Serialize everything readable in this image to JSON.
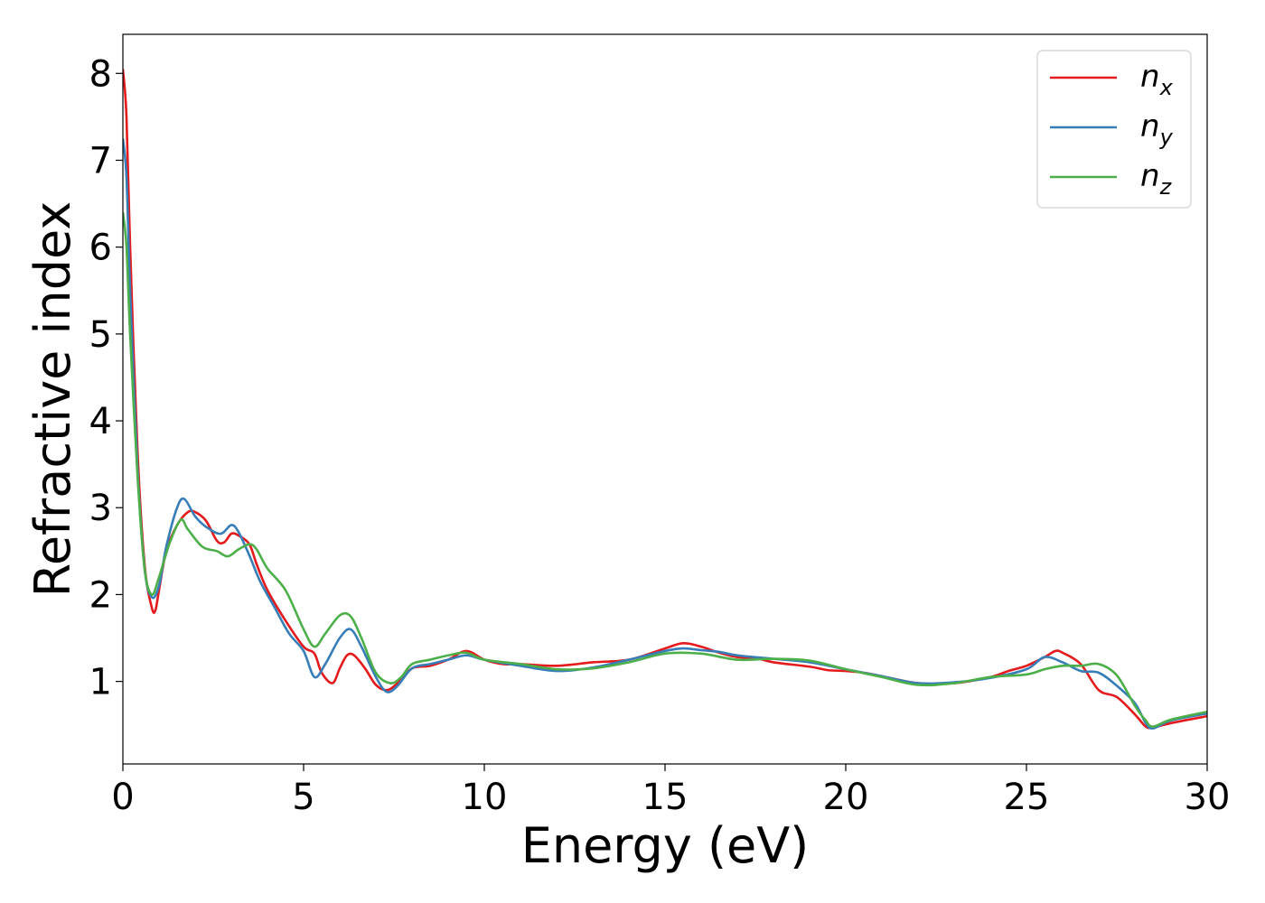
{
  "chart_data": {
    "type": "line",
    "xlabel": "Energy (eV)",
    "ylabel": "Refractive index",
    "xlim": [
      0,
      30
    ],
    "ylim": [
      0.05,
      8.45
    ],
    "xticks": [
      "0",
      "5",
      "10",
      "15",
      "20",
      "25",
      "30"
    ],
    "yticks": [
      "1",
      "2",
      "3",
      "4",
      "5",
      "6",
      "7",
      "8"
    ],
    "grid": false,
    "legend_position": "top-right",
    "series": [
      {
        "name": "n",
        "subscript": "x",
        "color": "#e41a1c",
        "x": [
          0,
          0.1,
          0.2,
          0.4,
          0.6,
          0.8,
          0.9,
          1.0,
          1.2,
          1.5,
          1.8,
          2.0,
          2.3,
          2.6,
          2.8,
          3.0,
          3.2,
          3.5,
          3.7,
          4.0,
          4.5,
          5.0,
          5.3,
          5.5,
          5.8,
          6.0,
          6.2,
          6.4,
          6.7,
          7.0,
          7.3,
          7.6,
          8.0,
          8.5,
          9.0,
          9.5,
          10.0,
          10.5,
          11.0,
          12.0,
          13.0,
          14.0,
          15.0,
          15.5,
          16.0,
          16.5,
          17.0,
          17.5,
          18.0,
          19.0,
          19.5,
          20.0,
          20.5,
          21.0,
          22.0,
          23.0,
          24.0,
          24.5,
          25.0,
          25.5,
          25.8,
          26.0,
          26.5,
          27.0,
          27.5,
          28.0,
          28.3,
          28.5,
          29.0,
          30.0
        ],
        "y": [
          8.05,
          7.5,
          6.0,
          3.7,
          2.35,
          1.85,
          1.82,
          2.05,
          2.5,
          2.8,
          2.95,
          2.95,
          2.85,
          2.62,
          2.6,
          2.7,
          2.68,
          2.58,
          2.35,
          2.05,
          1.7,
          1.4,
          1.32,
          1.1,
          0.98,
          1.15,
          1.3,
          1.3,
          1.15,
          0.96,
          0.9,
          0.98,
          1.15,
          1.18,
          1.25,
          1.35,
          1.25,
          1.2,
          1.2,
          1.18,
          1.22,
          1.25,
          1.38,
          1.44,
          1.4,
          1.33,
          1.28,
          1.27,
          1.22,
          1.17,
          1.13,
          1.12,
          1.1,
          1.06,
          0.98,
          0.98,
          1.05,
          1.12,
          1.18,
          1.28,
          1.35,
          1.33,
          1.2,
          0.9,
          0.82,
          0.62,
          0.48,
          0.47,
          0.52,
          0.6
        ]
      },
      {
        "name": "n",
        "subscript": "y",
        "color": "#377eb8",
        "x": [
          0,
          0.1,
          0.2,
          0.4,
          0.6,
          0.8,
          1.0,
          1.2,
          1.5,
          1.7,
          2.0,
          2.3,
          2.7,
          3.0,
          3.2,
          3.5,
          3.8,
          4.2,
          4.6,
          5.0,
          5.3,
          5.6,
          6.0,
          6.3,
          6.6,
          7.0,
          7.3,
          7.6,
          8.0,
          8.5,
          9.0,
          9.5,
          10.0,
          11.0,
          12.0,
          13.0,
          14.0,
          15.0,
          15.5,
          16.0,
          16.5,
          17.0,
          18.0,
          19.0,
          20.0,
          21.0,
          22.0,
          23.0,
          24.0,
          25.0,
          25.5,
          26.0,
          26.5,
          27.0,
          27.5,
          28.0,
          28.3,
          28.5,
          29.0,
          30.0
        ],
        "y": [
          7.25,
          6.8,
          5.5,
          3.5,
          2.3,
          1.97,
          2.1,
          2.55,
          3.0,
          3.1,
          2.9,
          2.78,
          2.7,
          2.8,
          2.72,
          2.45,
          2.15,
          1.85,
          1.55,
          1.35,
          1.05,
          1.2,
          1.5,
          1.6,
          1.4,
          1.05,
          0.88,
          0.95,
          1.15,
          1.2,
          1.25,
          1.3,
          1.25,
          1.18,
          1.12,
          1.16,
          1.25,
          1.35,
          1.38,
          1.36,
          1.34,
          1.3,
          1.26,
          1.22,
          1.14,
          1.06,
          0.98,
          0.99,
          1.04,
          1.14,
          1.28,
          1.22,
          1.12,
          1.1,
          0.95,
          0.75,
          0.52,
          0.46,
          0.55,
          0.63
        ]
      },
      {
        "name": "n",
        "subscript": "z",
        "color": "#4daf4a",
        "x": [
          0,
          0.1,
          0.2,
          0.4,
          0.6,
          0.8,
          1.0,
          1.3,
          1.6,
          1.8,
          2.2,
          2.6,
          2.9,
          3.2,
          3.5,
          3.7,
          4.0,
          4.5,
          5.0,
          5.3,
          5.6,
          6.0,
          6.3,
          6.6,
          7.0,
          7.4,
          7.7,
          8.0,
          8.5,
          9.0,
          9.5,
          10.0,
          11.0,
          12.0,
          13.0,
          14.0,
          15.0,
          16.0,
          17.0,
          18.0,
          19.0,
          20.0,
          21.0,
          22.0,
          23.0,
          24.0,
          25.0,
          25.5,
          26.0,
          26.5,
          27.0,
          27.5,
          28.0,
          28.3,
          28.5,
          29.0,
          30.0
        ],
        "y": [
          6.4,
          6.0,
          5.0,
          3.4,
          2.3,
          2.0,
          2.2,
          2.6,
          2.86,
          2.75,
          2.55,
          2.5,
          2.44,
          2.52,
          2.58,
          2.52,
          2.3,
          2.05,
          1.6,
          1.4,
          1.55,
          1.76,
          1.75,
          1.5,
          1.1,
          0.98,
          1.05,
          1.2,
          1.25,
          1.3,
          1.33,
          1.25,
          1.2,
          1.14,
          1.15,
          1.22,
          1.32,
          1.32,
          1.25,
          1.26,
          1.24,
          1.14,
          1.05,
          0.96,
          0.98,
          1.05,
          1.08,
          1.14,
          1.18,
          1.18,
          1.2,
          1.07,
          0.72,
          0.55,
          0.48,
          0.56,
          0.65
        ]
      }
    ]
  }
}
